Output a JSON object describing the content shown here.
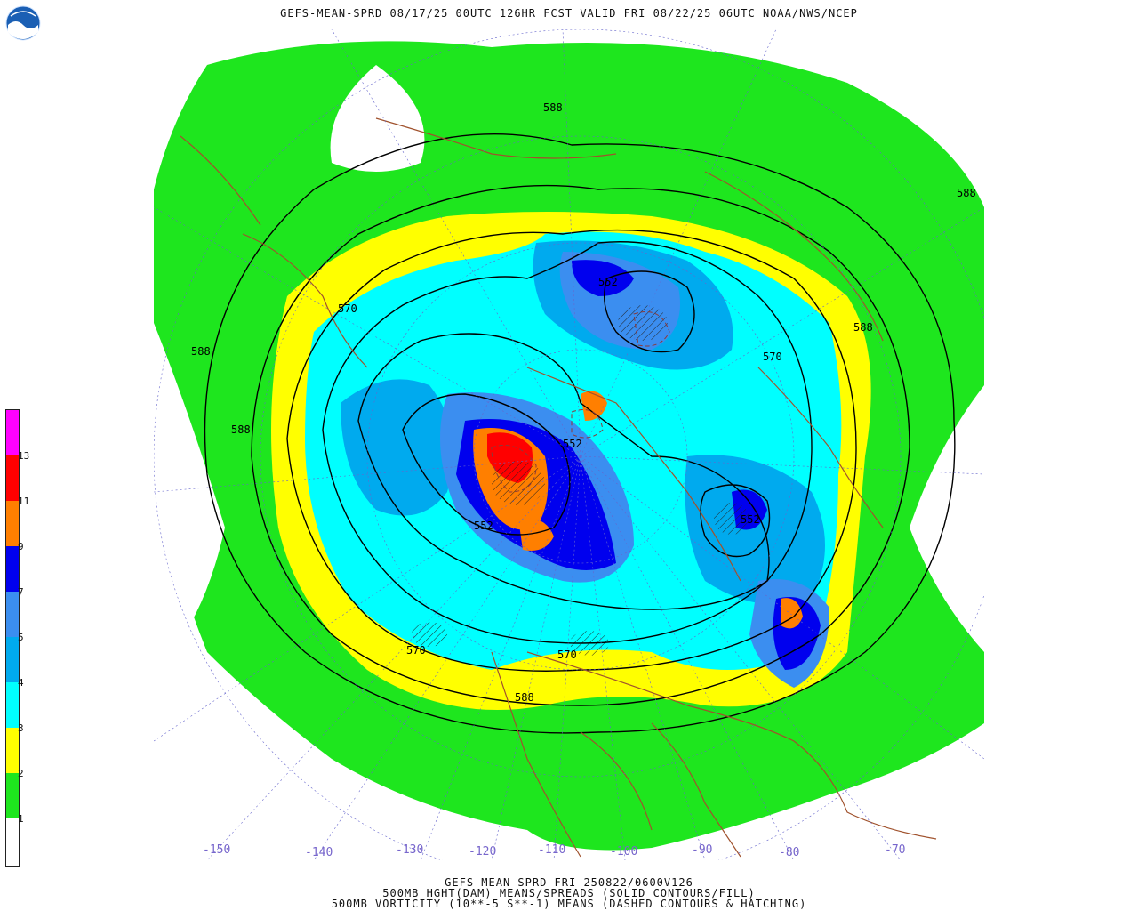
{
  "header": {
    "title": "GEFS-MEAN-SPRD 08/17/25 00UTC 126HR FCST VALID FRI 08/22/25 06UTC NOAA/NWS/NCEP",
    "logo_text": "NOAA"
  },
  "legend": {
    "labels": [
      "1",
      "2",
      "3",
      "4",
      "5",
      "7",
      "9",
      "11",
      "13"
    ],
    "colors": [
      "#ffffff",
      "#1ee61e",
      "#ffff00",
      "#00ffff",
      "#00aaee",
      "#3b8ef0",
      "#0000ee",
      "#ff7f00",
      "#ff0000",
      "#ff00ff"
    ]
  },
  "map": {
    "contour_labels": {
      "c552a": "552",
      "c552b": "552",
      "c552c": "552",
      "c552d": "552",
      "c570a": "570",
      "c570b": "570",
      "c570c": "570",
      "c570d": "570",
      "c588a": "588",
      "c588b": "588",
      "c588c": "588",
      "c588d": "588",
      "c588e": "588",
      "c588f": "588"
    },
    "lon_labels": [
      "-150",
      "-140",
      "-130",
      "-120",
      "-110",
      "-100",
      "-90",
      "-80",
      "-70"
    ],
    "colors": {
      "green": "#1ee61e",
      "yellow": "#ffff00",
      "cyan": "#00ffff",
      "light_blue": "#00aaee",
      "mid_blue": "#3b8ef0",
      "blue": "#0000ee",
      "orange": "#ff7f00",
      "red": "#ff0000",
      "coast": "#a0522d"
    }
  },
  "footer": {
    "line1": "GEFS-MEAN-SPRD FRI 250822/0600V126",
    "line2": "500MB HGHT(DAM) MEANS/SPREADS (SOLID CONTOURS/FILL)",
    "line3": "500MB VORTICITY (10**-5 S**-1) MEANS (DASHED CONTOURS & HATCHING)"
  }
}
